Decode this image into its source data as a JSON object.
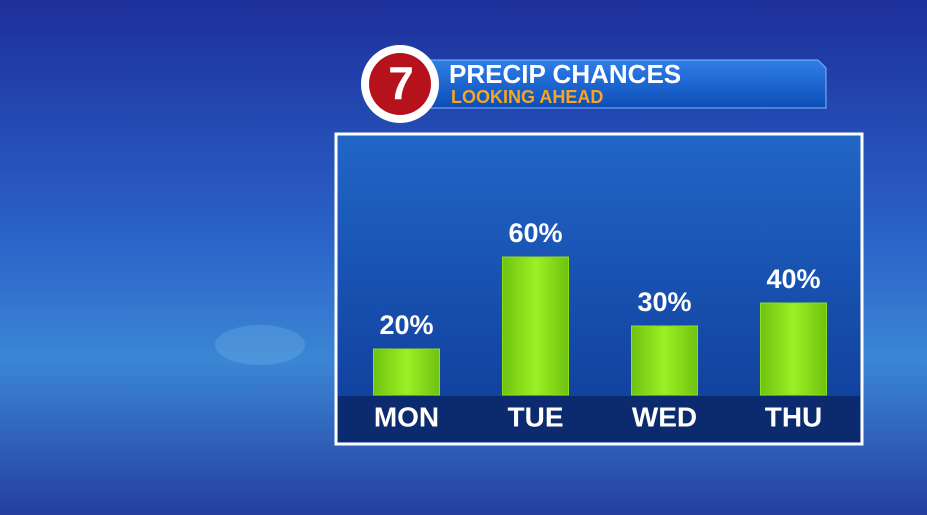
{
  "chart_data": {
    "type": "bar",
    "logo": "7",
    "title": "PRECIP CHANCES",
    "subtitle": "LOOKING AHEAD",
    "categories": [
      "MON",
      "TUE",
      "WED",
      "THU"
    ],
    "values": [
      20,
      60,
      30,
      40
    ],
    "value_labels": [
      "20%",
      "60%",
      "30%",
      "40%"
    ],
    "color": "#8fe01c"
  }
}
